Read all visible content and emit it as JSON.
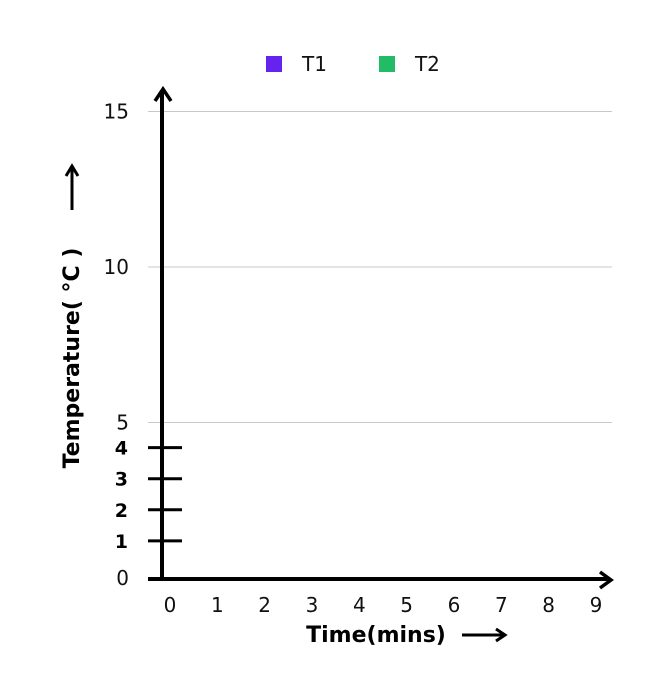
{
  "chart_data": {
    "type": "line",
    "title": "",
    "xlabel": "Time(mins)",
    "ylabel": "Temperature(  °C  )",
    "x_ticks": [
      "0",
      "1",
      "2",
      "3",
      "4",
      "5",
      "6",
      "7",
      "8",
      "9"
    ],
    "y_ticks": [
      "0",
      "5",
      "10",
      "15"
    ],
    "y_minor_ticks": [
      "1",
      "2",
      "3",
      "4"
    ],
    "xlim": [
      0,
      9
    ],
    "ylim": [
      0,
      15
    ],
    "grid": true,
    "legend_position": "top-center",
    "series": [
      {
        "name": "T1",
        "color": "#6622ee",
        "values": []
      },
      {
        "name": "T2",
        "color": "#22bb66",
        "values": []
      }
    ]
  }
}
